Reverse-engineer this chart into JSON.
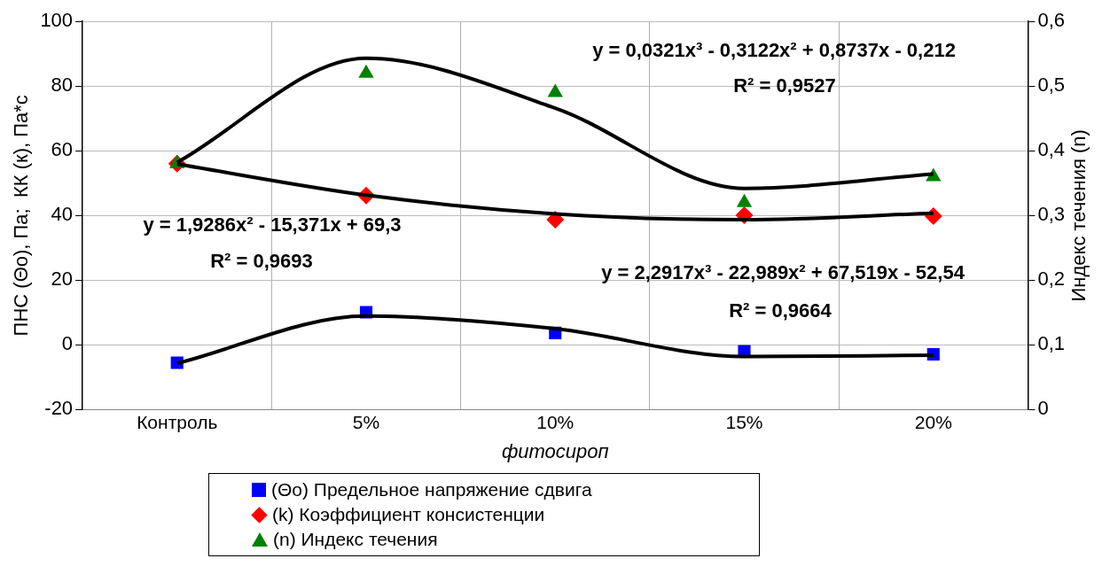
{
  "chart_data": {
    "type": "scatter",
    "ylabel": "ПНС (Θо), Па;  КК (к), Па*с",
    "y2label": "Индекс течения (n)",
    "xlabel": "фитосироп",
    "categories": [
      "Контроль",
      "5%",
      "10%",
      "15%",
      "20%"
    ],
    "ylim": [
      -20,
      100
    ],
    "yticks": [
      -20,
      0,
      20,
      40,
      60,
      80,
      100
    ],
    "y2lim": [
      0,
      0.6
    ],
    "y2ticks": [
      {
        "value": 0,
        "label": "0"
      },
      {
        "value": 0.1,
        "label": "0,1"
      },
      {
        "value": 0.2,
        "label": "0,2"
      },
      {
        "value": 0.3,
        "label": "0,3"
      },
      {
        "value": 0.4,
        "label": "0,4"
      },
      {
        "value": 0.5,
        "label": "0,5"
      },
      {
        "value": 0.6,
        "label": "0,6"
      }
    ],
    "grid": true,
    "legend": "bottom",
    "series": [
      {
        "name": "(Θо) Предельное напряжение сдвига",
        "color": "#0000ff",
        "marker": "square",
        "values": [
          -5.5,
          10.1,
          3.7,
          -2.0,
          -2.9
        ]
      },
      {
        "name": "(k) Коэффициент консистенции",
        "color": "#ff0000",
        "marker": "diamond",
        "values": [
          56,
          46.2,
          38.7,
          40.1,
          39.8
        ]
      },
      {
        "name": "(n) Индекс течения",
        "color": "#008000",
        "marker": "triangle",
        "axis": "y2",
        "values": [
          0.38,
          0.52,
          0.49,
          0.32,
          0.36
        ]
      },
      {
        "type": "line",
        "color": "#000000",
        "marker": "none",
        "values": [
          -5.7,
          8.9,
          5.0,
          -3.6,
          -3.2
        ]
      },
      {
        "type": "line",
        "color": "#000000",
        "marker": "none",
        "values": [
          55.9,
          46.3,
          40.5,
          38.7,
          40.7
        ]
      },
      {
        "type": "line",
        "color": "#000000",
        "marker": "none",
        "axis": "y2",
        "values": [
          0.382,
          0.543,
          0.466,
          0.342,
          0.364
        ]
      }
    ],
    "annotations": [
      "y = 0,0321x³ - 0,3122x² + 0,8737x - 0,212",
      "R² = 0,9527",
      "y = 1,9286x² - 15,371x + 69,3",
      "R² = 0,9693",
      "y = 2,2917x³ - 22,989x² + 67,519x - 52,54",
      "R² = 0,9664"
    ]
  }
}
